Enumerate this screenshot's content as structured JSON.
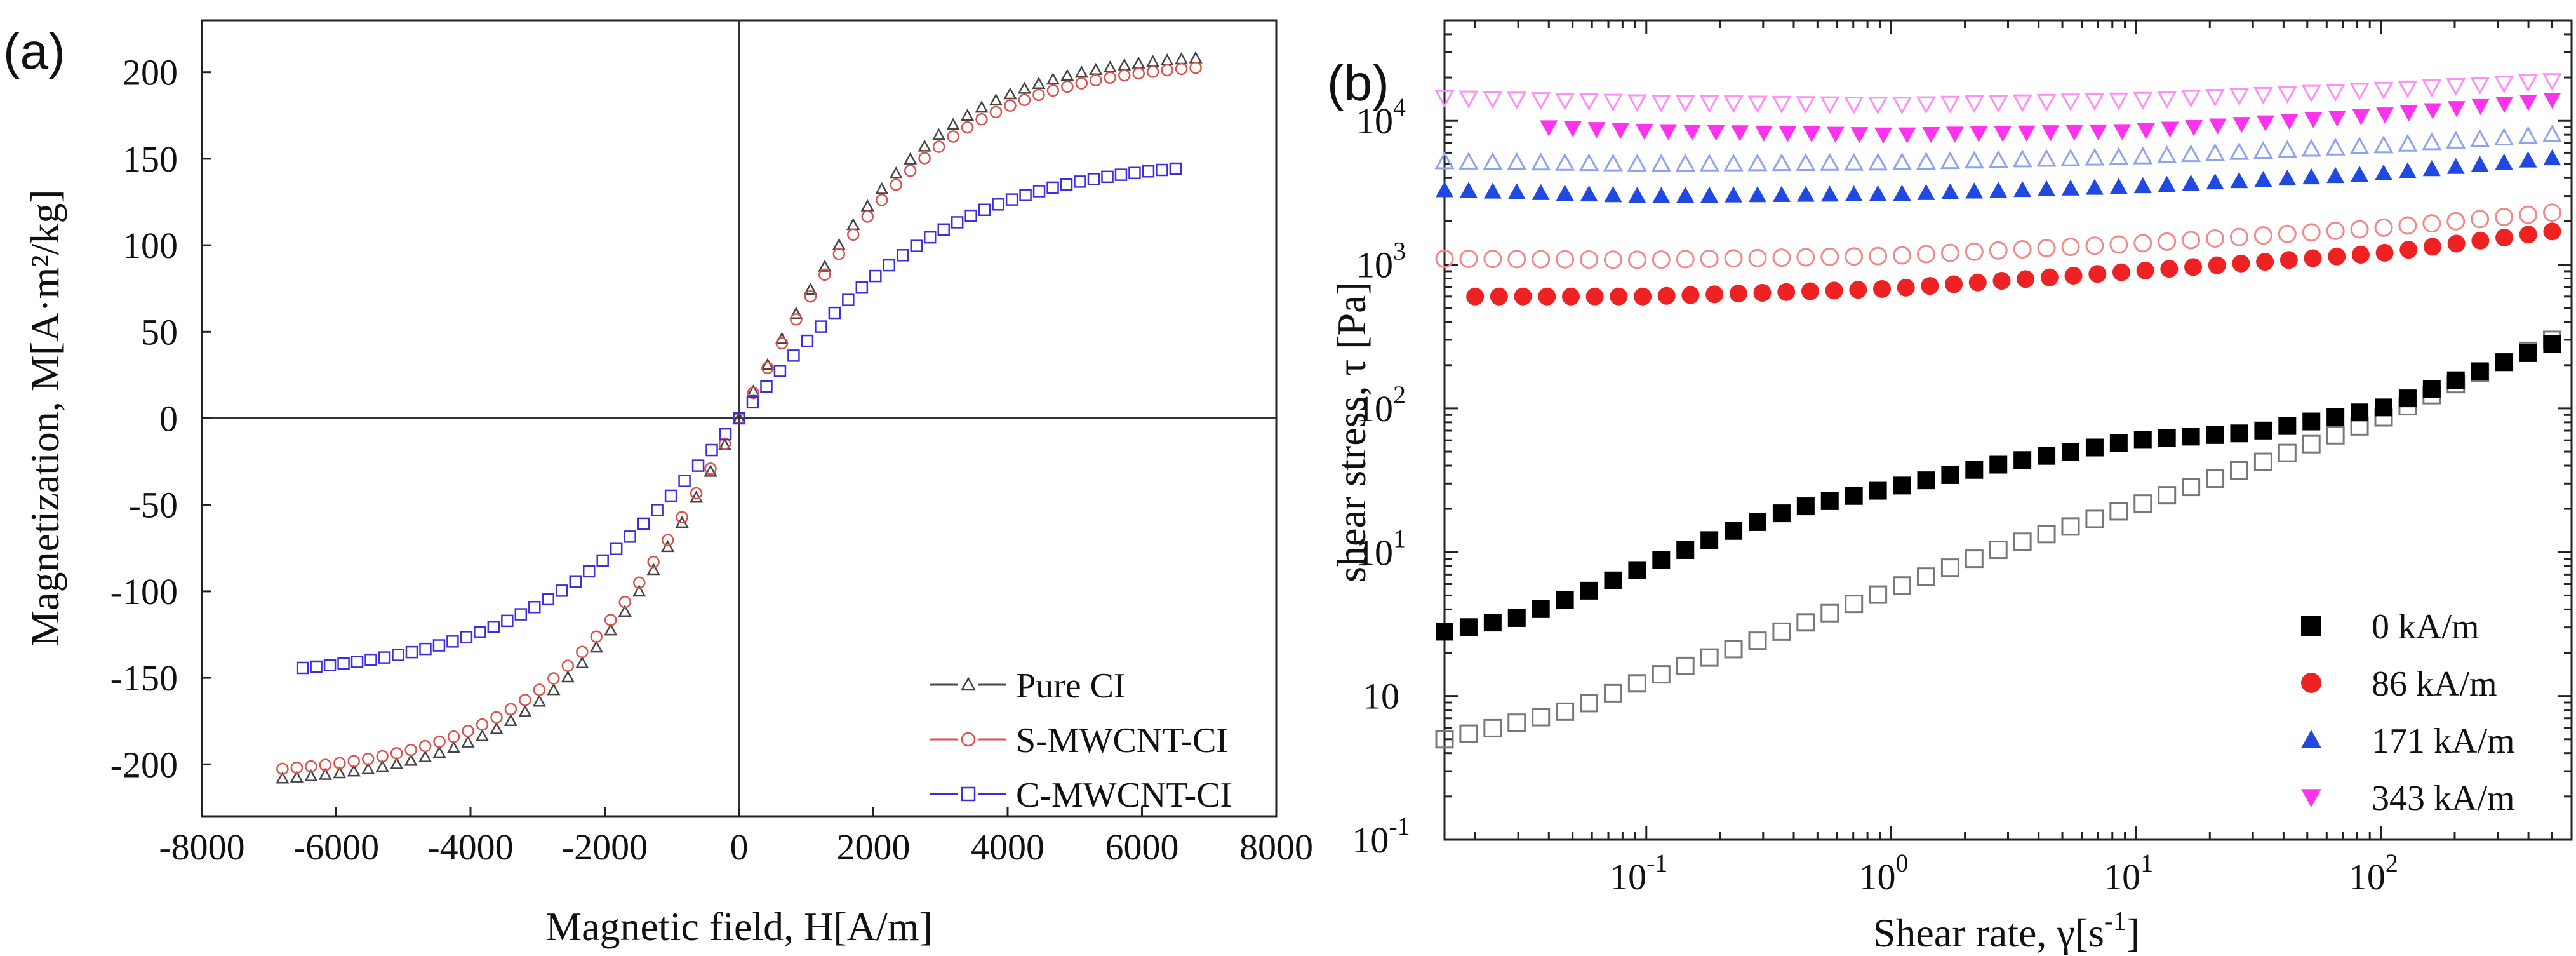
{
  "chart_data": [
    {
      "panel_label": "(a)",
      "type": "scatter",
      "xlabel": "Magnetic field, H[A/m]",
      "ylabel": "Magnetization, M[A·m²/kg]",
      "xlim": [
        -8000,
        8000
      ],
      "ylim": [
        -230,
        230
      ],
      "xticks": [
        -8000,
        -6000,
        -4000,
        -2000,
        0,
        2000,
        4000,
        6000,
        8000
      ],
      "xtick_labels": [
        "-8000",
        "-6000",
        "-4000",
        "-2000",
        "0",
        "2000",
        "4000",
        "6000",
        "8000"
      ],
      "yticks": [
        -200,
        -150,
        -100,
        -50,
        0,
        50,
        100,
        150,
        200
      ],
      "ytick_labels": [
        "-200",
        "-150",
        "-100",
        "-50",
        "0",
        "50",
        "100",
        "150",
        "200"
      ],
      "legend_position": "bottom-right",
      "series": [
        {
          "name": "Pure CI",
          "color": "#444444",
          "marker": "triangle-open",
          "hmax": 6800,
          "ms": 212,
          "k": 2900
        },
        {
          "name": "S-MWCNT-CI",
          "color": "#d9534f",
          "marker": "circle-open",
          "hmax": 6800,
          "ms": 207,
          "k": 3000
        },
        {
          "name": "C-MWCNT-CI",
          "color": "#3a2fe0",
          "marker": "square-open",
          "hmax": 6500,
          "ms": 150,
          "k": 3300
        }
      ]
    },
    {
      "panel_label": "(b)",
      "type": "scatter",
      "xscale": "log",
      "yscale": "log",
      "xlabel": "Shear rate, γ[s",
      "xlabel_sup": "-1",
      "xlabel_end": "]",
      "ylabel": "shear stress, τ [Pa]",
      "xlim": [
        0.015,
        600
      ],
      "ylim": [
        0.1,
        50000
      ],
      "xticks": [
        0.1,
        1,
        10,
        100
      ],
      "xtick_labels": [
        {
          "base": "10",
          "exp": "-1"
        },
        {
          "base": "10",
          "exp": "0"
        },
        {
          "base": "10",
          "exp": "1"
        },
        {
          "base": "10",
          "exp": "2"
        }
      ],
      "yticks": [
        0.1,
        1,
        10,
        100,
        1000,
        10000
      ],
      "ytick_labels": [
        {
          "base": "10",
          "exp": "-1"
        },
        {
          "base": "10",
          "exp": ""
        },
        {
          "base": "10",
          "exp": "1"
        },
        {
          "base": "10",
          "exp": "2"
        },
        {
          "base": "10",
          "exp": "3"
        },
        {
          "base": "10",
          "exp": "4"
        }
      ],
      "legend_position": "bottom-right",
      "series": [
        {
          "name": "0  kA/m",
          "color": "#000000",
          "marker": "square",
          "filled": {
            "x": [
              0.015,
              500
            ],
            "y": [
              [
                0.015,
                2.8
              ],
              [
                0.03,
                3.5
              ],
              [
                0.06,
                5.5
              ],
              [
                0.1,
                8
              ],
              [
                0.2,
                13
              ],
              [
                0.4,
                20
              ],
              [
                1,
                28
              ],
              [
                3,
                42
              ],
              [
                10,
                60
              ],
              [
                30,
                68
              ],
              [
                100,
                100
              ],
              [
                500,
                280
              ]
            ]
          },
          "open": {
            "y": [
              [
                0.015,
                0.5
              ],
              [
                0.05,
                0.8
              ],
              [
                0.1,
                1.3
              ],
              [
                0.3,
                2.5
              ],
              [
                1,
                5.5
              ],
              [
                3,
                11
              ],
              [
                10,
                21
              ],
              [
                30,
                40
              ],
              [
                100,
                85
              ],
              [
                500,
                300
              ]
            ]
          }
        },
        {
          "name": "86  kA/m",
          "color": "#ee2222",
          "marker": "circle",
          "filled": {
            "x": [
              0.02,
              500
            ],
            "y": [
              [
                0.02,
                600
              ],
              [
                0.1,
                600
              ],
              [
                1,
                680
              ],
              [
                10,
                900
              ],
              [
                100,
                1200
              ],
              [
                500,
                1700
              ]
            ]
          },
          "open": {
            "x": [
              0.015,
              500
            ],
            "y": [
              [
                0.015,
                1100
              ],
              [
                0.1,
                1080
              ],
              [
                1,
                1150
              ],
              [
                10,
                1400
              ],
              [
                100,
                1800
              ],
              [
                500,
                2300
              ]
            ]
          }
        },
        {
          "name": "171 kA/m",
          "color": "#1f49e0",
          "marker": "triangle-up",
          "filled": {
            "x": [
              0.015,
              500
            ],
            "y": [
              [
                0.015,
                3300
              ],
              [
                0.1,
                3000
              ],
              [
                1,
                3100
              ],
              [
                10,
                3500
              ],
              [
                100,
                4300
              ],
              [
                500,
                5500
              ]
            ]
          },
          "open": {
            "x": [
              0.015,
              500
            ],
            "y": [
              [
                0.015,
                5200
              ],
              [
                0.1,
                5000
              ],
              [
                1,
                5100
              ],
              [
                10,
                5600
              ],
              [
                100,
                6700
              ],
              [
                500,
                8000
              ]
            ]
          }
        },
        {
          "name": "343 kA/m",
          "color": "#ff33ee",
          "marker": "triangle-down",
          "filled": {
            "x": [
              0.04,
              500
            ],
            "y": [
              [
                0.04,
                9000
              ],
              [
                0.1,
                8500
              ],
              [
                1,
                8000
              ],
              [
                10,
                8500
              ],
              [
                100,
                11000
              ],
              [
                500,
                14000
              ]
            ]
          },
          "open": {
            "x": [
              0.015,
              500
            ],
            "y": [
              [
                0.015,
                14500
              ],
              [
                0.1,
                13500
              ],
              [
                1,
                13000
              ],
              [
                10,
                14000
              ],
              [
                100,
                16500
              ],
              [
                500,
                19000
              ]
            ]
          }
        }
      ]
    }
  ]
}
